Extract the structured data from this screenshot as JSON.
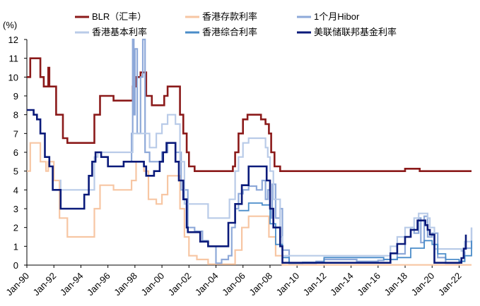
{
  "chart_data": {
    "type": "line",
    "unit_label": "(%)",
    "grid": false,
    "legend_position": "top",
    "ylim": [
      0,
      12
    ],
    "yticks": [
      0,
      1,
      2,
      3,
      4,
      5,
      6,
      7,
      8,
      9,
      10,
      11,
      12
    ],
    "xlim": [
      "1990-01",
      "2022-12"
    ],
    "xticks": [
      "Jan-90",
      "Jan-92",
      "Jan-94",
      "Jan-96",
      "Jan-98",
      "Jan-00",
      "Jan-02",
      "Jan-04",
      "Jan-06",
      "Jan-08",
      "Jan-10",
      "Jan-12",
      "Jan-14",
      "Jan-16",
      "Jan-18",
      "Jan-20",
      "Jan-22"
    ],
    "series": [
      {
        "name": "BLR（汇丰）",
        "color": "#8b1a1a",
        "width": 2.6,
        "points": [
          [
            "1990-01",
            10.0
          ],
          [
            "1990-04",
            11.0
          ],
          [
            "1990-09",
            11.0
          ],
          [
            "1991-01",
            10.0
          ],
          [
            "1991-04",
            9.5
          ],
          [
            "1991-08",
            10.5
          ],
          [
            "1991-09",
            9.5
          ],
          [
            "1992-03",
            8.0
          ],
          [
            "1992-09",
            6.75
          ],
          [
            "1993-01",
            6.5
          ],
          [
            "1994-09",
            6.5
          ],
          [
            "1995-01",
            8.0
          ],
          [
            "1995-06",
            9.0
          ],
          [
            "1996-03",
            9.0
          ],
          [
            "1996-06",
            8.75
          ],
          [
            "1997-10",
            8.75
          ],
          [
            "1997-11",
            9.5
          ],
          [
            "1998-02",
            10.0
          ],
          [
            "1998-06",
            10.25
          ],
          [
            "1998-11",
            9.0
          ],
          [
            "1999-04",
            8.5
          ],
          [
            "1999-11",
            8.5
          ],
          [
            "2000-03",
            9.0
          ],
          [
            "2000-06",
            9.5
          ],
          [
            "2001-01",
            9.5
          ],
          [
            "2001-05",
            8.0
          ],
          [
            "2001-08",
            7.0
          ],
          [
            "2001-11",
            6.0
          ],
          [
            "2002-01",
            5.25
          ],
          [
            "2002-06",
            5.0
          ],
          [
            "2005-04",
            5.25
          ],
          [
            "2005-06",
            6.0
          ],
          [
            "2005-09",
            7.0
          ],
          [
            "2006-01",
            7.75
          ],
          [
            "2006-05",
            8.0
          ],
          [
            "2007-01",
            8.0
          ],
          [
            "2007-05",
            7.75
          ],
          [
            "2007-09",
            7.5
          ],
          [
            "2007-12",
            7.0
          ],
          [
            "2008-02",
            6.0
          ],
          [
            "2008-05",
            5.25
          ],
          [
            "2008-10",
            5.0
          ],
          [
            "2022-09",
            5.0
          ],
          [
            "2017-12",
            5.0
          ],
          [
            "2018-01",
            5.125
          ],
          [
            "2019-01",
            5.125
          ],
          [
            "2019-02",
            5.0
          ],
          [
            "2022-12",
            5.0
          ]
        ]
      },
      {
        "name": "香港存款利率",
        "color": "#f7c6a3",
        "width": 2.2,
        "points": [
          [
            "1990-01",
            5.0
          ],
          [
            "1990-04",
            6.5
          ],
          [
            "1990-09",
            6.5
          ],
          [
            "1991-01",
            5.5
          ],
          [
            "1991-06",
            5.0
          ],
          [
            "1991-08",
            5.5
          ],
          [
            "1992-01",
            4.5
          ],
          [
            "1992-06",
            2.5
          ],
          [
            "1993-01",
            1.5
          ],
          [
            "1994-06",
            1.5
          ],
          [
            "1995-01",
            3.0
          ],
          [
            "1995-06",
            4.25
          ],
          [
            "1996-06",
            4.0
          ],
          [
            "1997-06",
            4.0
          ],
          [
            "1997-10",
            4.5
          ],
          [
            "1998-02",
            5.5
          ],
          [
            "1998-09",
            5.0
          ],
          [
            "1999-01",
            3.5
          ],
          [
            "1999-08",
            3.25
          ],
          [
            "2000-01",
            3.75
          ],
          [
            "2000-06",
            4.75
          ],
          [
            "2001-01",
            4.75
          ],
          [
            "2001-05",
            3.0
          ],
          [
            "2001-09",
            1.5
          ],
          [
            "2002-01",
            0.5
          ],
          [
            "2002-08",
            0.3
          ],
          [
            "2003-06",
            0.05
          ],
          [
            "2004-12",
            0.05
          ],
          [
            "2005-06",
            0.8
          ],
          [
            "2005-12",
            2.0
          ],
          [
            "2006-06",
            2.6
          ],
          [
            "2007-06",
            2.6
          ],
          [
            "2007-12",
            1.5
          ],
          [
            "2008-06",
            0.5
          ],
          [
            "2008-12",
            0.01
          ],
          [
            "2022-12",
            0.01
          ]
        ]
      },
      {
        "name": "1个月Hibor",
        "color": "#8ea9d9",
        "width": 2.2,
        "points": [
          [
            "1997-06",
            5.5
          ],
          [
            "1997-10",
            7.0
          ],
          [
            "1997-11",
            12.0
          ],
          [
            "1997-12",
            8.0
          ],
          [
            "1998-01",
            11.5
          ],
          [
            "1998-03",
            7.0
          ],
          [
            "1998-06",
            10.0
          ],
          [
            "1998-08",
            12.0
          ],
          [
            "1998-10",
            6.0
          ],
          [
            "1999-02",
            5.5
          ],
          [
            "1999-08",
            5.5
          ],
          [
            "2000-01",
            6.0
          ],
          [
            "2000-06",
            6.5
          ],
          [
            "2001-01",
            6.0
          ],
          [
            "2001-06",
            4.0
          ],
          [
            "2001-12",
            2.0
          ],
          [
            "2002-06",
            1.8
          ],
          [
            "2003-01",
            1.3
          ],
          [
            "2003-06",
            1.0
          ],
          [
            "2004-01",
            0.1
          ],
          [
            "2004-06",
            0.3
          ],
          [
            "2004-12",
            0.5
          ],
          [
            "2005-03",
            2.0
          ],
          [
            "2005-06",
            3.0
          ],
          [
            "2005-09",
            3.8
          ],
          [
            "2006-01",
            4.0
          ],
          [
            "2006-06",
            4.2
          ],
          [
            "2007-01",
            4.0
          ],
          [
            "2007-06",
            4.5
          ],
          [
            "2007-09",
            3.5
          ],
          [
            "2007-11",
            4.0
          ],
          [
            "2008-01",
            3.0
          ],
          [
            "2008-02",
            2.5
          ],
          [
            "2008-03",
            4.3
          ],
          [
            "2008-06",
            2.5
          ],
          [
            "2008-10",
            3.0
          ],
          [
            "2008-12",
            0.8
          ],
          [
            "2009-06",
            0.1
          ],
          [
            "2011-06",
            0.2
          ],
          [
            "2012-01",
            0.3
          ],
          [
            "2014-06",
            0.2
          ],
          [
            "2016-01",
            0.25
          ],
          [
            "2016-06",
            0.3
          ],
          [
            "2017-06",
            0.6
          ],
          [
            "2018-01",
            1.5
          ],
          [
            "2018-06",
            2.0
          ],
          [
            "2018-09",
            1.7
          ],
          [
            "2019-01",
            2.5
          ],
          [
            "2019-03",
            1.2
          ],
          [
            "2019-06",
            2.6
          ],
          [
            "2019-09",
            1.5
          ],
          [
            "2020-01",
            1.7
          ],
          [
            "2020-06",
            0.4
          ],
          [
            "2021-01",
            0.1
          ],
          [
            "2022-01",
            0.2
          ],
          [
            "2022-06",
            0.9
          ],
          [
            "2022-12",
            2.0
          ]
        ]
      },
      {
        "name": "香港基本利率",
        "color": "#b9cbe8",
        "width": 2.2,
        "points": [
          [
            "1992-06",
            4.5
          ],
          [
            "1992-07",
            4.0
          ],
          [
            "1994-09",
            4.0
          ],
          [
            "1995-01",
            5.75
          ],
          [
            "1995-04",
            6.0
          ],
          [
            "1997-06",
            6.0
          ],
          [
            "1997-11",
            7.0
          ],
          [
            "1998-04",
            7.0
          ],
          [
            "1998-09",
            7.0
          ],
          [
            "1999-02",
            6.25
          ],
          [
            "1999-08",
            7.0
          ],
          [
            "2000-01",
            7.5
          ],
          [
            "2000-06",
            8.0
          ],
          [
            "2001-01",
            7.5
          ],
          [
            "2001-05",
            5.5
          ],
          [
            "2001-09",
            3.25
          ],
          [
            "2002-01",
            3.25
          ],
          [
            "2003-06",
            2.5
          ],
          [
            "2004-06",
            2.5
          ],
          [
            "2005-01",
            3.5
          ],
          [
            "2005-06",
            5.0
          ],
          [
            "2005-09",
            5.75
          ],
          [
            "2006-01",
            6.5
          ],
          [
            "2006-06",
            6.75
          ],
          [
            "2007-06",
            6.75
          ],
          [
            "2007-09",
            6.25
          ],
          [
            "2007-11",
            5.75
          ],
          [
            "2008-01",
            5.0
          ],
          [
            "2008-04",
            3.5
          ],
          [
            "2008-10",
            1.5
          ],
          [
            "2008-12",
            0.5
          ],
          [
            "2015-12",
            0.5
          ],
          [
            "2016-12",
            1.0
          ],
          [
            "2017-06",
            1.5
          ],
          [
            "2018-01",
            2.0
          ],
          [
            "2018-09",
            2.5
          ],
          [
            "2019-01",
            2.75
          ],
          [
            "2019-08",
            2.75
          ],
          [
            "2019-09",
            2.5
          ],
          [
            "2019-11",
            2.0
          ],
          [
            "2020-03",
            0.86
          ],
          [
            "2022-03",
            0.75
          ],
          [
            "2022-06",
            1.25
          ],
          [
            "2022-12",
            2.0
          ]
        ]
      },
      {
        "name": "香港综合利率",
        "color": "#4a8cc9",
        "width": 1.8,
        "points": [
          [
            "2005-09",
            2.9
          ],
          [
            "2006-06",
            3.3
          ],
          [
            "2007-06",
            3.2
          ],
          [
            "2008-01",
            2.2
          ],
          [
            "2008-06",
            1.1
          ],
          [
            "2008-12",
            0.4
          ],
          [
            "2009-06",
            0.1
          ],
          [
            "2010-06",
            0.15
          ],
          [
            "2012-01",
            0.4
          ],
          [
            "2014-06",
            0.4
          ],
          [
            "2016-06",
            0.3
          ],
          [
            "2017-06",
            0.4
          ],
          [
            "2018-06",
            0.9
          ],
          [
            "2019-06",
            1.3
          ],
          [
            "2020-01",
            1.1
          ],
          [
            "2020-06",
            0.6
          ],
          [
            "2021-01",
            0.3
          ],
          [
            "2022-01",
            0.2
          ],
          [
            "2022-06",
            0.5
          ],
          [
            "2022-12",
            1.3
          ]
        ]
      },
      {
        "name": "美联储联邦基金利率",
        "color": "#0a1a7a",
        "width": 2.6,
        "points": [
          [
            "1990-01",
            8.25
          ],
          [
            "1990-07",
            8.0
          ],
          [
            "1990-10",
            7.75
          ],
          [
            "1991-01",
            7.0
          ],
          [
            "1991-05",
            5.75
          ],
          [
            "1991-09",
            5.25
          ],
          [
            "1991-12",
            4.0
          ],
          [
            "1992-07",
            3.0
          ],
          [
            "1994-02",
            3.0
          ],
          [
            "1994-04",
            3.75
          ],
          [
            "1994-08",
            4.75
          ],
          [
            "1994-11",
            5.5
          ],
          [
            "1995-02",
            6.0
          ],
          [
            "1995-07",
            5.75
          ],
          [
            "1996-01",
            5.25
          ],
          [
            "1997-03",
            5.5
          ],
          [
            "1998-09",
            5.25
          ],
          [
            "1998-11",
            4.75
          ],
          [
            "1999-06",
            5.0
          ],
          [
            "1999-11",
            5.5
          ],
          [
            "2000-02",
            6.0
          ],
          [
            "2000-05",
            6.5
          ],
          [
            "2001-01",
            5.5
          ],
          [
            "2001-04",
            4.5
          ],
          [
            "2001-08",
            3.5
          ],
          [
            "2001-11",
            2.0
          ],
          [
            "2001-12",
            1.75
          ],
          [
            "2002-11",
            1.25
          ],
          [
            "2003-06",
            1.0
          ],
          [
            "2004-06",
            1.0
          ],
          [
            "2004-12",
            2.25
          ],
          [
            "2005-06",
            3.25
          ],
          [
            "2005-12",
            4.25
          ],
          [
            "2006-06",
            5.25
          ],
          [
            "2007-08",
            5.25
          ],
          [
            "2007-10",
            4.5
          ],
          [
            "2008-01",
            3.0
          ],
          [
            "2008-04",
            2.0
          ],
          [
            "2008-10",
            1.0
          ],
          [
            "2008-12",
            0.125
          ],
          [
            "2015-12",
            0.125
          ],
          [
            "2016-12",
            0.625
          ],
          [
            "2017-06",
            1.125
          ],
          [
            "2018-01",
            1.5
          ],
          [
            "2018-06",
            1.875
          ],
          [
            "2018-12",
            2.375
          ],
          [
            "2019-07",
            2.125
          ],
          [
            "2019-09",
            1.875
          ],
          [
            "2019-11",
            1.625
          ],
          [
            "2020-03",
            0.125
          ],
          [
            "2022-03",
            0.375
          ],
          [
            "2022-05",
            0.875
          ],
          [
            "2022-07",
            1.625
          ]
        ]
      }
    ]
  }
}
